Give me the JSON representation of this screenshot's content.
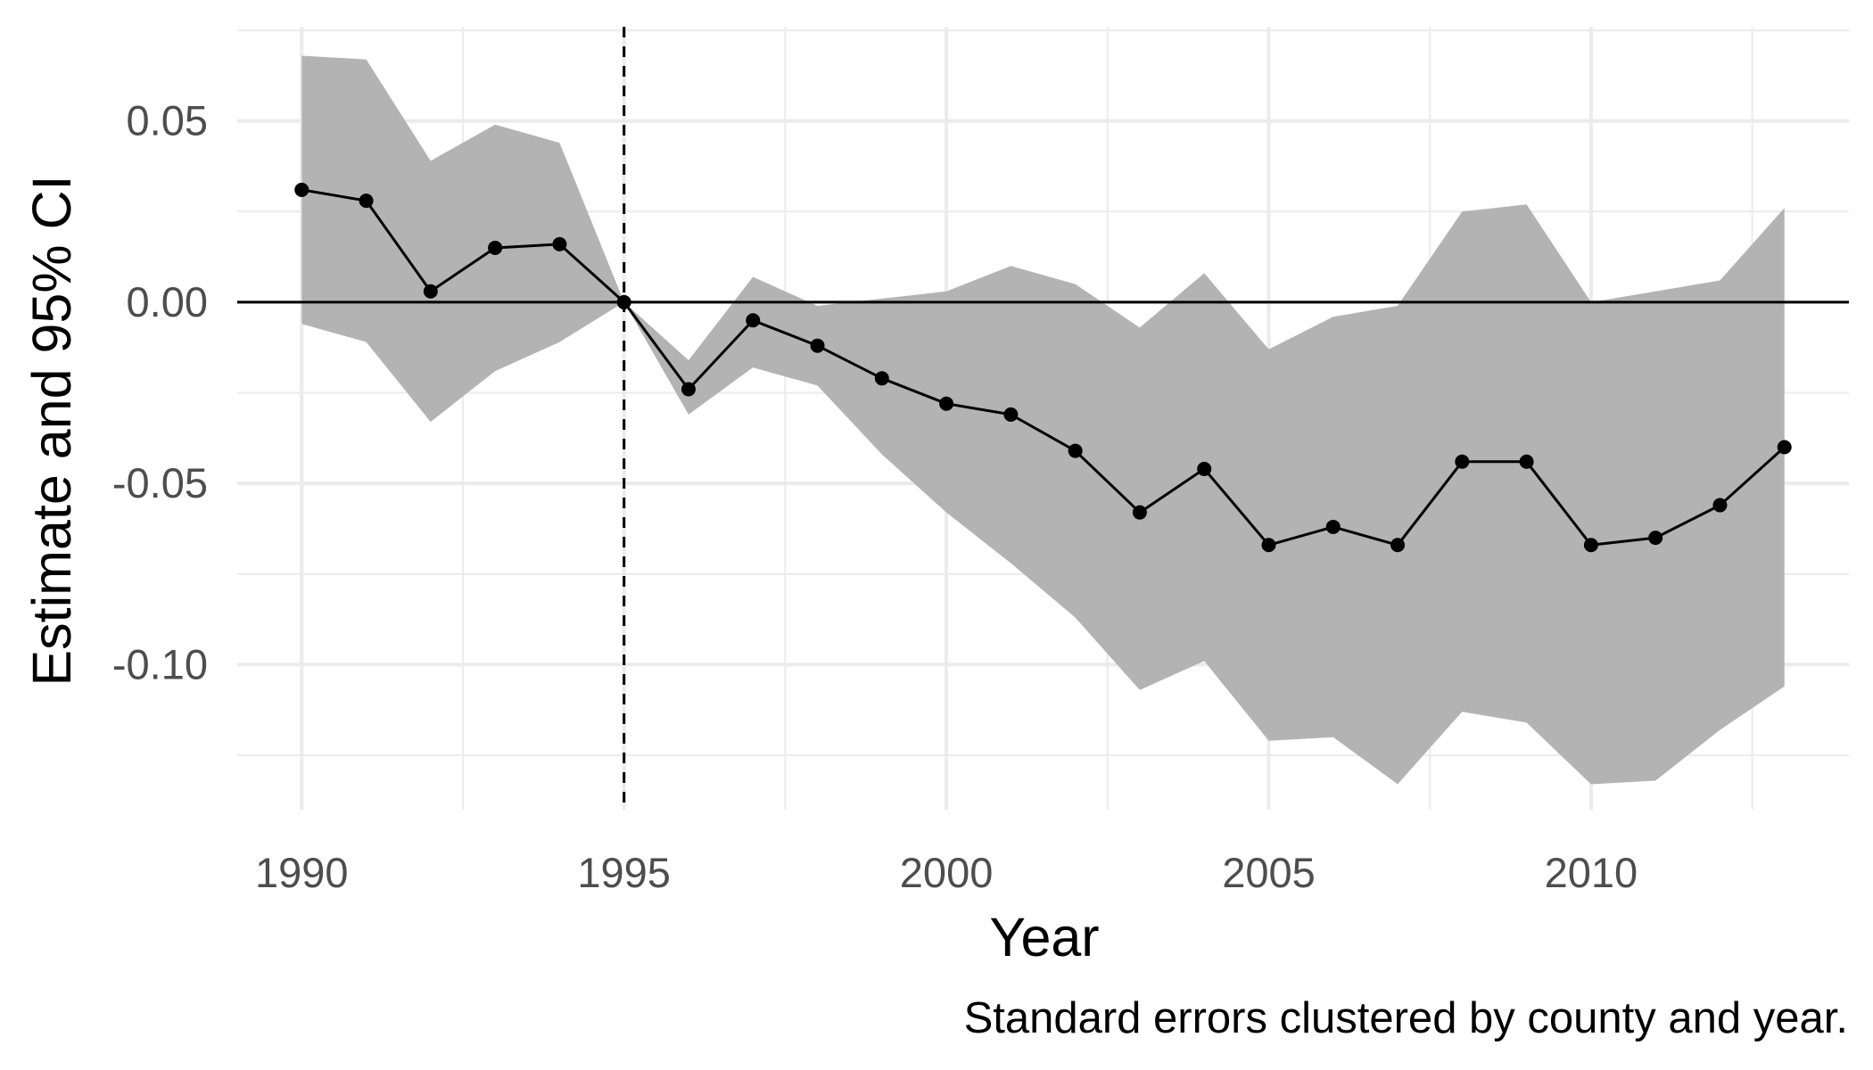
{
  "chart_data": {
    "type": "line",
    "title": "",
    "xlabel": "Year",
    "ylabel": "Estimate and 95% CI",
    "caption": "Standard errors clustered by county and year.",
    "xlim": [
      1989,
      2014
    ],
    "ylim": [
      -0.14,
      0.076
    ],
    "x_ticks": [
      1990,
      1995,
      2000,
      2005,
      2010
    ],
    "x_tick_labels": [
      "1990",
      "1995",
      "2000",
      "2005",
      "2010"
    ],
    "y_ticks": [
      0.05,
      0.0,
      -0.05,
      -0.1
    ],
    "y_tick_labels": [
      "0.05",
      "0.00",
      "-0.05",
      "-0.10"
    ],
    "grid": true,
    "reference_lines": {
      "horizontal_y": 0,
      "vertical_x": 1995
    },
    "series": [
      {
        "x": [
          1990,
          1991,
          1992,
          1993,
          1994,
          1995,
          1996,
          1997,
          1998,
          1999,
          2000,
          2001,
          2002,
          2003,
          2004,
          2005,
          2006,
          2007,
          2008,
          2009,
          2010,
          2011,
          2012,
          2013
        ],
        "estimate": [
          0.031,
          0.028,
          0.003,
          0.015,
          0.016,
          0.0,
          -0.024,
          -0.005,
          -0.012,
          -0.021,
          -0.028,
          -0.031,
          -0.041,
          -0.058,
          -0.046,
          -0.067,
          -0.062,
          -0.067,
          -0.044,
          -0.044,
          -0.067,
          -0.065,
          -0.056,
          -0.04
        ],
        "ci_upper": [
          0.068,
          0.067,
          0.039,
          0.049,
          0.044,
          0.0,
          -0.016,
          0.007,
          -0.001,
          0.001,
          0.003,
          0.01,
          0.005,
          -0.007,
          0.008,
          -0.013,
          -0.004,
          -0.001,
          0.025,
          0.027,
          0.0,
          0.003,
          0.006,
          0.026
        ],
        "ci_lower": [
          -0.006,
          -0.011,
          -0.033,
          -0.019,
          -0.011,
          0.0,
          -0.031,
          -0.018,
          -0.023,
          -0.042,
          -0.058,
          -0.072,
          -0.087,
          -0.107,
          -0.099,
          -0.121,
          -0.12,
          -0.133,
          -0.113,
          -0.116,
          -0.133,
          -0.132,
          -0.118,
          -0.106
        ]
      }
    ],
    "colors": {
      "ribbon": "#b3b3b3",
      "line": "#000000",
      "point": "#000000",
      "grid": "#ebebeb",
      "zero_line": "#000000",
      "tick_label": "#4d4d4d"
    }
  }
}
